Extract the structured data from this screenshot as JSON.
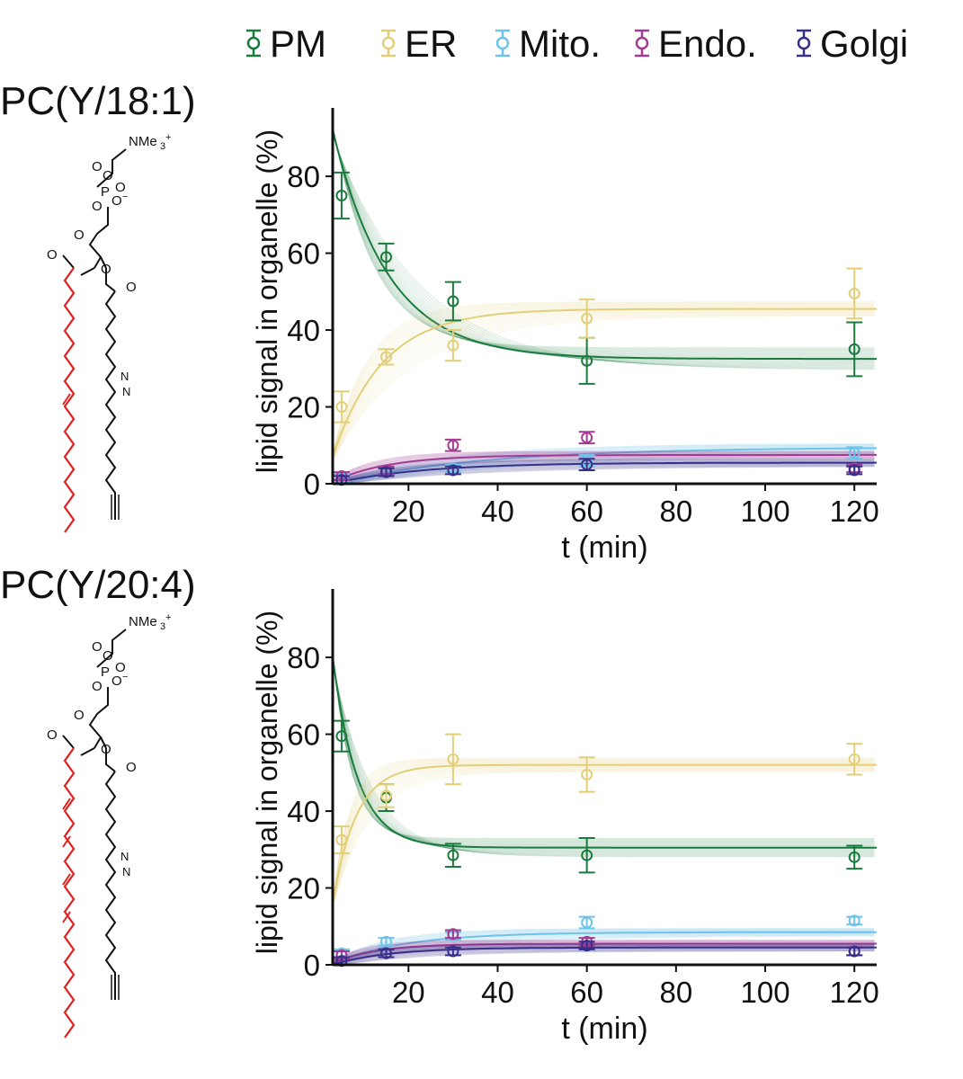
{
  "legend": [
    {
      "label": "PM",
      "color": "#1b7a3e"
    },
    {
      "label": "ER",
      "color": "#e2cf78"
    },
    {
      "label": "Mito.",
      "color": "#6ec3e8"
    },
    {
      "label": "Endo.",
      "color": "#a23c93"
    },
    {
      "label": "Golgi",
      "color": "#37308a"
    }
  ],
  "chart_data": [
    {
      "type": "line",
      "title": "PC(Y/18:1)",
      "xlabel": "t (min)",
      "ylabel": "lipid signal in organelle (%)",
      "xlim": [
        3,
        125
      ],
      "ylim": [
        0,
        95
      ],
      "xticks": [
        20,
        40,
        60,
        80,
        100,
        120
      ],
      "yticks": [
        0,
        20,
        40,
        60,
        80
      ],
      "x": [
        5,
        15,
        30,
        60,
        120
      ],
      "series": [
        {
          "name": "PM",
          "color": "#1b7a3e",
          "values": [
            75,
            59,
            47.5,
            32,
            35
          ],
          "err": [
            6,
            3.5,
            5,
            6,
            7
          ],
          "fit": {
            "y0": 92,
            "yinf": 32.5,
            "k": 0.08
          }
        },
        {
          "name": "ER",
          "color": "#e2cf78",
          "values": [
            20,
            33,
            36,
            43,
            49.5
          ],
          "err": [
            4,
            2,
            4,
            5,
            6.5
          ],
          "fit": {
            "y0": 7,
            "yinf": 45.5,
            "k": 0.09
          }
        },
        {
          "name": "Mito.",
          "color": "#6ec3e8",
          "values": [
            1.5,
            3,
            4,
            6,
            8
          ],
          "err": [
            1,
            1,
            1,
            1.5,
            1.5
          ],
          "fit": {
            "y0": 0,
            "yinf": 9.5,
            "k": 0.03
          }
        },
        {
          "name": "Endo.",
          "color": "#a23c93",
          "values": [
            2,
            3.5,
            10,
            12,
            4
          ],
          "err": [
            1,
            1,
            1.5,
            1.5,
            1
          ],
          "fit": {
            "y0": 0.5,
            "yinf": 7.5,
            "k": 0.08
          }
        },
        {
          "name": "Golgi",
          "color": "#37308a",
          "values": [
            1,
            3,
            3.5,
            5,
            3.5
          ],
          "err": [
            1,
            1,
            1,
            1.5,
            1
          ],
          "fit": {
            "y0": 0,
            "yinf": 5.5,
            "k": 0.05
          }
        }
      ]
    },
    {
      "type": "line",
      "title": "PC(Y/20:4)",
      "xlabel": "t (min)",
      "ylabel": "lipid signal in organelle (%)",
      "xlim": [
        3,
        125
      ],
      "ylim": [
        0,
        95
      ],
      "xticks": [
        20,
        40,
        60,
        80,
        100,
        120
      ],
      "yticks": [
        0,
        20,
        40,
        60,
        80
      ],
      "x": [
        5,
        15,
        30,
        60,
        120
      ],
      "series": [
        {
          "name": "PM",
          "color": "#1b7a3e",
          "values": [
            59.5,
            43.5,
            28.5,
            28.5,
            28
          ],
          "err": [
            4,
            3.5,
            3,
            4.5,
            3
          ],
          "fit": {
            "y0": 80,
            "yinf": 30.5,
            "k": 0.18
          }
        },
        {
          "name": "ER",
          "color": "#e2cf78",
          "values": [
            32.5,
            44,
            53.5,
            49.5,
            53.5
          ],
          "err": [
            3.5,
            3,
            6.5,
            4.5,
            4
          ],
          "fit": {
            "y0": 16,
            "yinf": 52,
            "k": 0.19
          }
        },
        {
          "name": "Mito.",
          "color": "#6ec3e8",
          "values": [
            3,
            6,
            7.5,
            11,
            11.5
          ],
          "err": [
            1,
            1,
            1,
            1.5,
            1
          ],
          "fit": {
            "y0": 0.5,
            "yinf": 8.5,
            "k": 0.06
          }
        },
        {
          "name": "Endo.",
          "color": "#a23c93",
          "values": [
            2.5,
            3,
            8,
            6,
            3.5
          ],
          "err": [
            1,
            1,
            1,
            1,
            1
          ],
          "fit": {
            "y0": 0.5,
            "yinf": 5.5,
            "k": 0.1
          }
        },
        {
          "name": "Golgi",
          "color": "#37308a",
          "values": [
            1,
            3,
            3.5,
            5,
            3.5
          ],
          "err": [
            1,
            1,
            1,
            1,
            1
          ],
          "fit": {
            "y0": 0,
            "yinf": 4.5,
            "k": 0.08
          }
        }
      ]
    }
  ]
}
